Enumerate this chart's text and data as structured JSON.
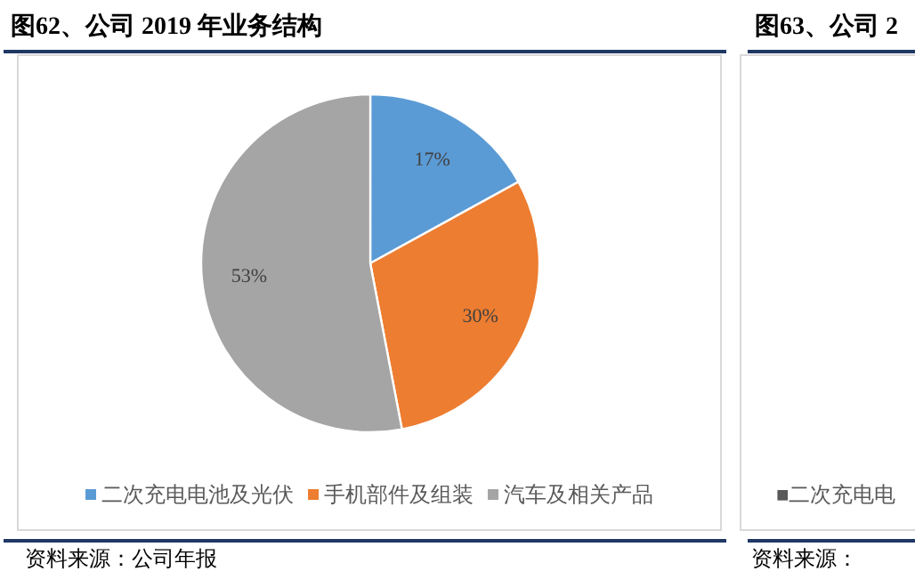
{
  "chart_data": [
    {
      "type": "pie",
      "title": "图62、公司 2019 年业务结构",
      "categories": [
        "二次充电电池及光伏",
        "手机部件及组装",
        "汽车及相关产品"
      ],
      "values": [
        17,
        30,
        53
      ],
      "colors": [
        "#5b9bd5",
        "#ed7d31",
        "#a5a5a5"
      ],
      "value_labels": [
        "17%",
        "30%",
        "53%"
      ],
      "legend": "bottom",
      "annotations": [
        "资料来源：公司年报"
      ]
    },
    {
      "type": "other",
      "title": "图63、公司 2",
      "annotations": [
        "■二次充电电",
        "资料来源："
      ]
    }
  ]
}
